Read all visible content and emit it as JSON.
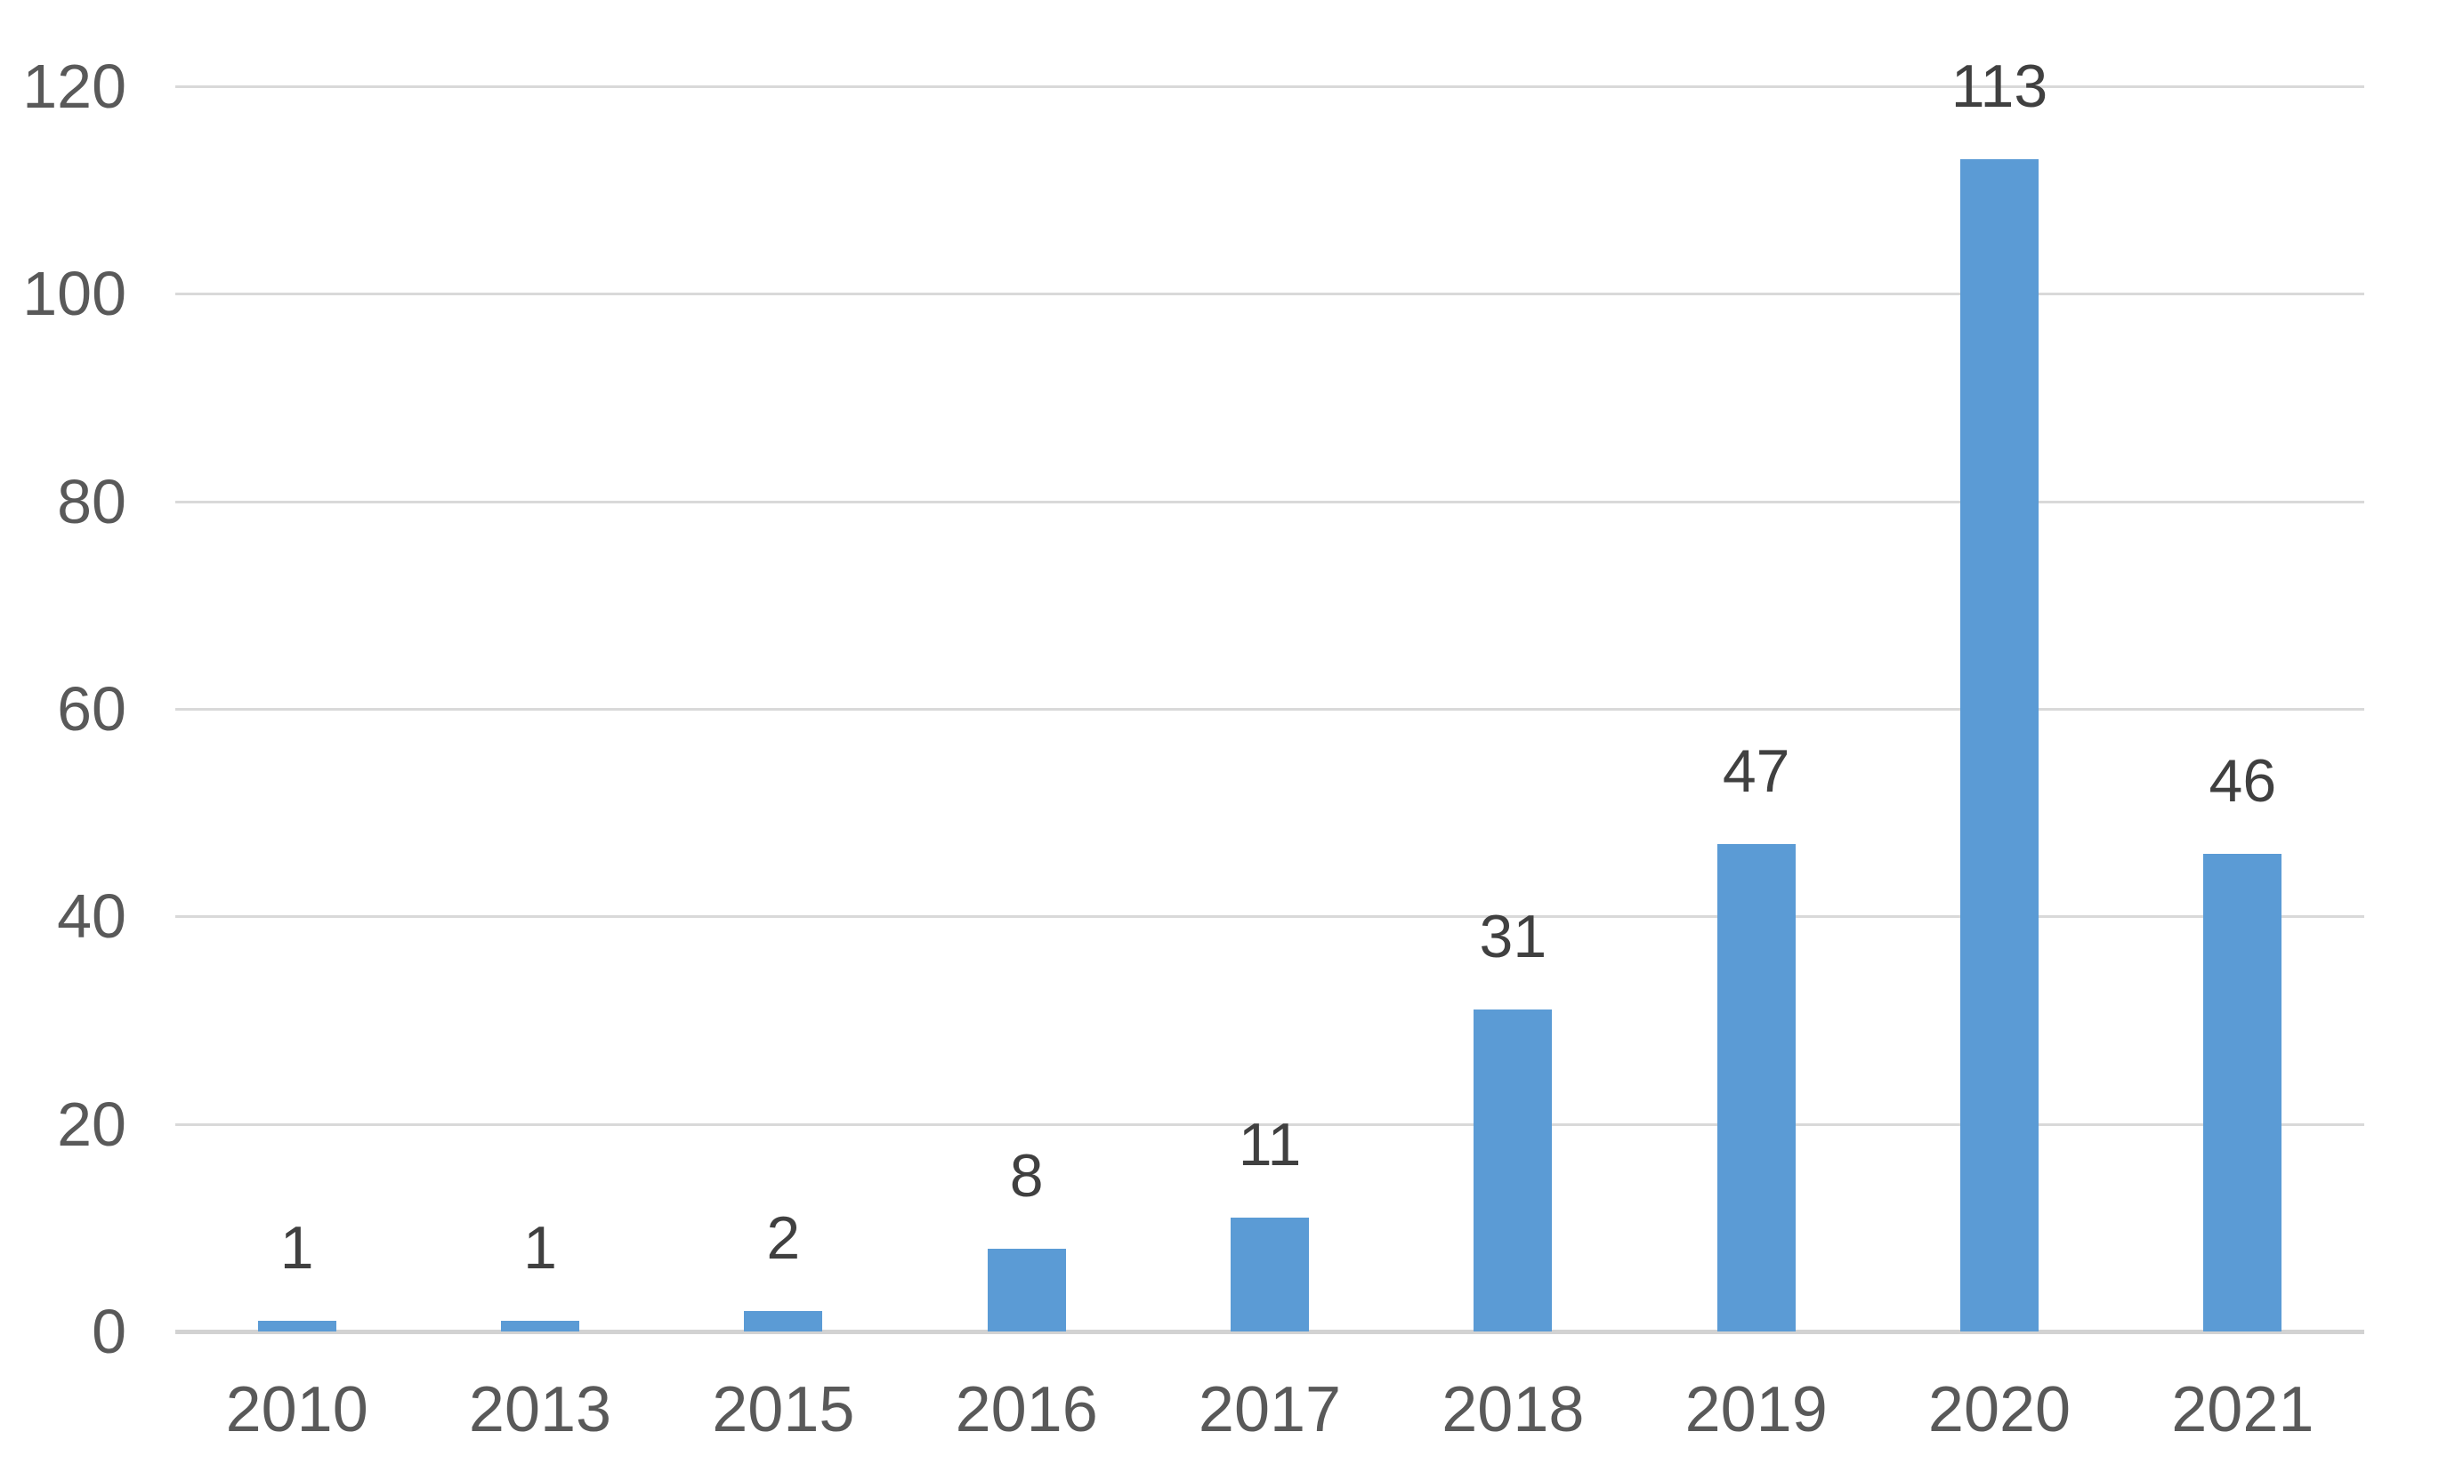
{
  "chart_data": {
    "type": "bar",
    "title": "",
    "xlabel": "",
    "ylabel": "",
    "categories": [
      "2010",
      "2013",
      "2015",
      "2016",
      "2017",
      "2018",
      "2019",
      "2020",
      "2021"
    ],
    "values": [
      1,
      1,
      2,
      8,
      11,
      31,
      47,
      113,
      46
    ],
    "data_labels": [
      "1",
      "1",
      "2",
      "8",
      "11",
      "31",
      "47",
      "113",
      "46"
    ],
    "ylim": [
      0,
      120
    ],
    "yticks": [
      0,
      20,
      40,
      60,
      80,
      100,
      120
    ],
    "ytick_labels": [
      "0",
      "20",
      "40",
      "60",
      "80",
      "100",
      "120"
    ],
    "grid": "horizontal-only",
    "legend_position": "none",
    "colors": {
      "bar_fill": "#5B9BD5",
      "gridline": "#D9D9D9",
      "axis_line": "#D2D2D2",
      "axis_tick_text": "#595959",
      "data_label_text": "#404040",
      "background": "#FFFFFF"
    }
  }
}
